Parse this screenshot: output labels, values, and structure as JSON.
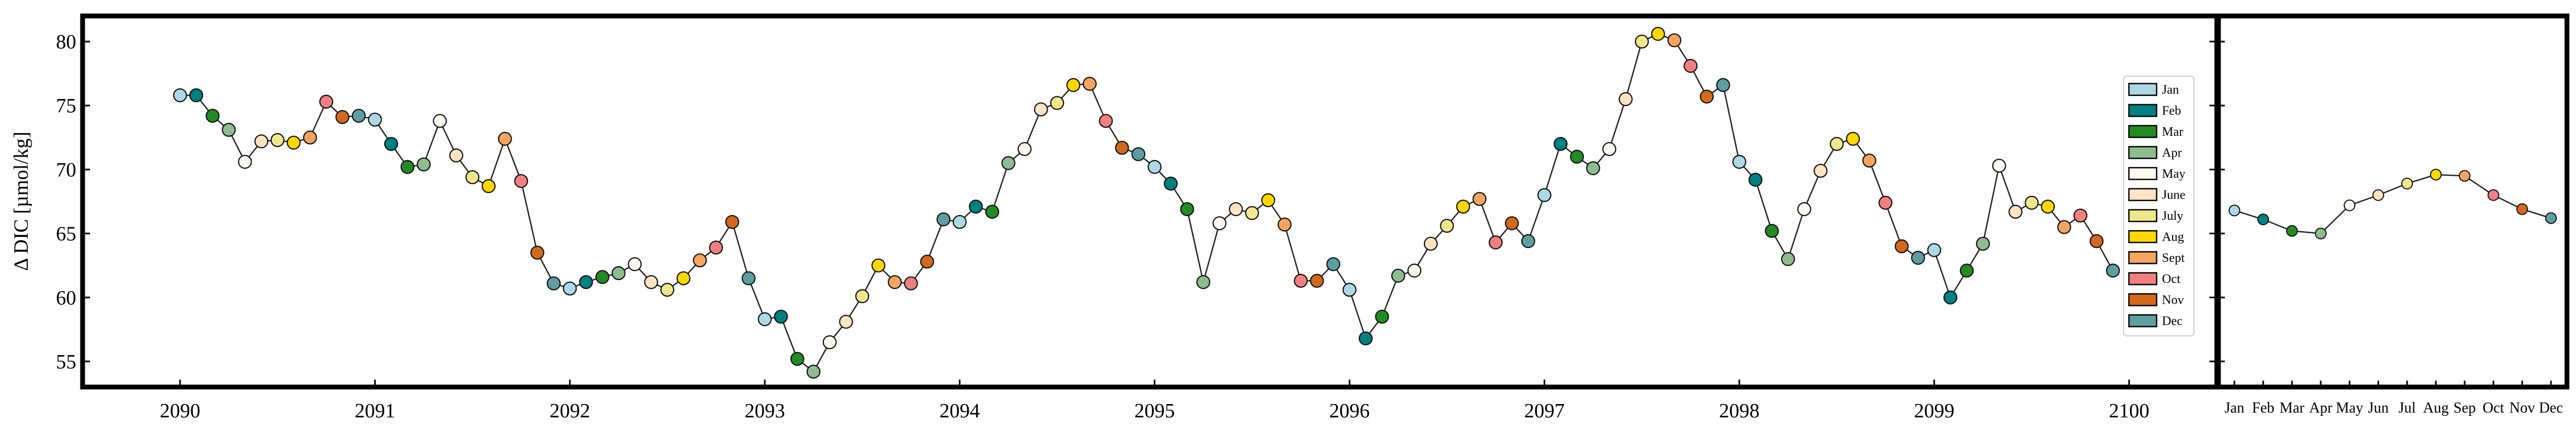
{
  "chart_data": [
    {
      "type": "line",
      "ylabel": "Δ DIC [µmol/kg]",
      "xlabel": "",
      "title": "",
      "xlim": [
        2089.5,
        2100.45
      ],
      "ylim": [
        53.0,
        82.0
      ],
      "xticks": [
        2090,
        2091,
        2092,
        2093,
        2094,
        2095,
        2096,
        2097,
        2098,
        2099,
        2100
      ],
      "xtick_labels": [
        "2090",
        "2091",
        "2092",
        "2093",
        "2094",
        "2095",
        "2096",
        "2097",
        "2098",
        "2099",
        "2100"
      ],
      "yticks": [
        55,
        60,
        65,
        70,
        75,
        80
      ],
      "ytick_labels": [
        "55",
        "60",
        "65",
        "70",
        "75",
        "80"
      ],
      "legend_position": "right",
      "legend": [
        {
          "label": "Jan",
          "color": "#add8e6"
        },
        {
          "label": "Feb",
          "color": "#008080"
        },
        {
          "label": "Mar",
          "color": "#228b22"
        },
        {
          "label": "Apr",
          "color": "#8fbc8f"
        },
        {
          "label": "May",
          "color": "#fffaf0"
        },
        {
          "label": "June",
          "color": "#ffe4c4"
        },
        {
          "label": "July",
          "color": "#f0e68c"
        },
        {
          "label": "Aug",
          "color": "#ffd700"
        },
        {
          "label": "Sept",
          "color": "#f4a460"
        },
        {
          "label": "Oct",
          "color": "#f08080"
        },
        {
          "label": "Nov",
          "color": "#d2691e"
        },
        {
          "label": "Dec",
          "color": "#5f9ea0"
        }
      ],
      "series": [
        {
          "x": [
            2090.0,
            2090.083,
            2090.167,
            2090.25,
            2090.333,
            2090.417,
            2090.5,
            2090.583,
            2090.667,
            2090.75,
            2090.833,
            2090.917,
            2091.0,
            2091.083,
            2091.167,
            2091.25,
            2091.333,
            2091.417,
            2091.5,
            2091.583,
            2091.667,
            2091.75,
            2091.833,
            2091.917,
            2092.0,
            2092.083,
            2092.167,
            2092.25,
            2092.333,
            2092.417,
            2092.5,
            2092.583,
            2092.667,
            2092.75,
            2092.833,
            2092.917,
            2093.0,
            2093.083,
            2093.167,
            2093.25,
            2093.333,
            2093.417,
            2093.5,
            2093.583,
            2093.667,
            2093.75,
            2093.833,
            2093.917,
            2094.0,
            2094.083,
            2094.167,
            2094.25,
            2094.333,
            2094.417,
            2094.5,
            2094.583,
            2094.667,
            2094.75,
            2094.833,
            2094.917,
            2095.0,
            2095.083,
            2095.167,
            2095.25,
            2095.333,
            2095.417,
            2095.5,
            2095.583,
            2095.667,
            2095.75,
            2095.833,
            2095.917,
            2096.0,
            2096.083,
            2096.167,
            2096.25,
            2096.333,
            2096.417,
            2096.5,
            2096.583,
            2096.667,
            2096.75,
            2096.833,
            2096.917,
            2097.0,
            2097.083,
            2097.167,
            2097.25,
            2097.333,
            2097.417,
            2097.5,
            2097.583,
            2097.667,
            2097.75,
            2097.833,
            2097.917,
            2098.0,
            2098.083,
            2098.167,
            2098.25,
            2098.333,
            2098.417,
            2098.5,
            2098.583,
            2098.667,
            2098.75,
            2098.833,
            2098.917,
            2099.0,
            2099.083,
            2099.167,
            2099.25,
            2099.333,
            2099.417,
            2099.5,
            2099.583,
            2099.667,
            2099.75,
            2099.833,
            2099.917
          ],
          "y": [
            75.8,
            75.8,
            74.2,
            73.1,
            70.6,
            72.2,
            72.3,
            72.1,
            72.5,
            75.3,
            74.1,
            74.2,
            73.9,
            72.0,
            70.2,
            70.4,
            73.8,
            71.1,
            69.4,
            68.7,
            72.4,
            69.1,
            63.5,
            61.1,
            60.7,
            61.2,
            61.6,
            61.9,
            62.6,
            61.2,
            60.6,
            61.5,
            62.9,
            63.9,
            65.9,
            61.5,
            58.3,
            58.5,
            55.2,
            54.2,
            56.5,
            58.1,
            60.1,
            62.5,
            61.2,
            61.1,
            62.8,
            66.1,
            65.9,
            67.1,
            66.7,
            70.5,
            71.6,
            74.7,
            75.2,
            76.6,
            76.7,
            73.8,
            71.7,
            71.2,
            70.2,
            68.9,
            66.9,
            61.2,
            65.8,
            66.9,
            66.6,
            67.6,
            65.7,
            61.3,
            61.3,
            62.6,
            60.6,
            56.8,
            58.5,
            61.7,
            62.1,
            64.2,
            65.6,
            67.1,
            67.7,
            64.3,
            65.8,
            64.4,
            68.0,
            72.0,
            71.0,
            70.1,
            71.6,
            75.5,
            80.0,
            80.6,
            80.1,
            78.1,
            75.7,
            76.6,
            70.6,
            69.2,
            65.2,
            63.0,
            66.9,
            69.9,
            72.0,
            72.4,
            70.7,
            67.4,
            64.0,
            63.1,
            63.7,
            60.0,
            62.1,
            64.2,
            70.3,
            66.7,
            67.4,
            67.1,
            65.5,
            66.4,
            64.4,
            62.1
          ]
        }
      ]
    },
    {
      "type": "line",
      "title": "",
      "xlabel": "",
      "ylabel": "",
      "categories": [
        "Jan",
        "Feb",
        "Mar",
        "Apr",
        "May",
        "Jun",
        "Jul",
        "Aug",
        "Sep",
        "Oct",
        "Nov",
        "Dec"
      ],
      "ylim": [
        53.0,
        82.0
      ],
      "series": [
        {
          "values": [
            66.8,
            66.1,
            65.2,
            65.0,
            67.2,
            68.0,
            68.9,
            69.6,
            69.5,
            68.0,
            66.9,
            66.2
          ]
        }
      ]
    }
  ]
}
